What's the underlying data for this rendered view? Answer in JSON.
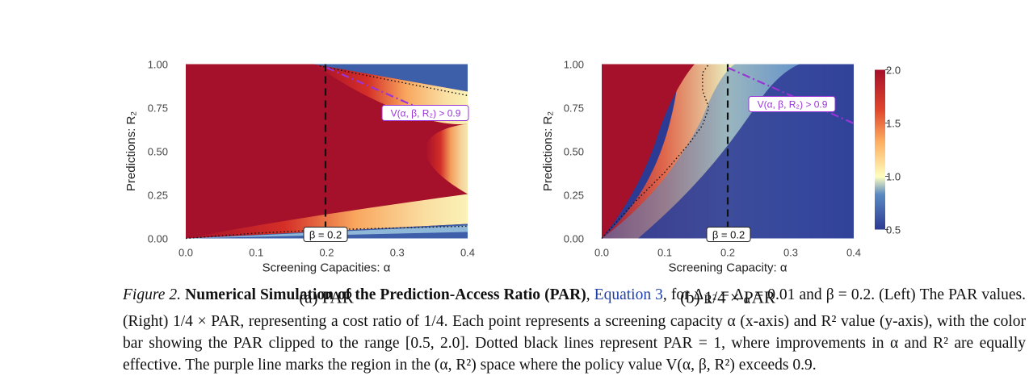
{
  "chart_data": [
    {
      "type": "heatmap",
      "subcaption": "(a) PAR",
      "xlabel": "Screening Capacities: α",
      "ylabel": "Predictions: R₂",
      "xticks": [
        "0.0",
        "0.1",
        "0.2",
        "0.3",
        "0.4"
      ],
      "yticks": [
        "0.00",
        "0.25",
        "0.50",
        "0.75",
        "1.00"
      ],
      "xlim": [
        0,
        0.4
      ],
      "ylim": [
        0,
        1
      ],
      "beta_line": {
        "x": 0.2,
        "label": "β = 0.2"
      },
      "policy_line": {
        "x": [
          0.2,
          0.33
        ],
        "y": [
          0.98,
          0.75
        ],
        "label": "V(α, β, R₂) > 0.9"
      },
      "contour_par_1_upper": {
        "x": [
          0.19,
          0.25,
          0.3,
          0.35,
          0.4
        ],
        "y": [
          0.99,
          0.94,
          0.9,
          0.86,
          0.82
        ]
      },
      "contour_par_1_lower": {
        "x": [
          0.0,
          0.1,
          0.2,
          0.3,
          0.4
        ],
        "y": [
          0.0,
          0.03,
          0.05,
          0.06,
          0.07
        ]
      },
      "colorscale_clip": [
        0.5,
        2.0
      ]
    },
    {
      "type": "heatmap",
      "subcaption": "(b) 1/4 × PAR",
      "xlabel": "Screening Capacity: α",
      "ylabel": "Predictions: R₂",
      "xticks": [
        "0.0",
        "0.1",
        "0.2",
        "0.3",
        "0.4"
      ],
      "yticks": [
        "0.00",
        "0.25",
        "0.50",
        "0.75",
        "1.00"
      ],
      "xlim": [
        0,
        0.4
      ],
      "ylim": [
        0,
        1
      ],
      "beta_line": {
        "x": 0.2,
        "label": "β = 0.2"
      },
      "policy_line": {
        "x": [
          0.2,
          0.4
        ],
        "y": [
          0.98,
          0.66
        ],
        "label": "V(α, β, R₂) > 0.9"
      },
      "contour_par_1": {
        "x": [
          0.0,
          0.05,
          0.1,
          0.14,
          0.16,
          0.17,
          0.16,
          0.16,
          0.17
        ],
        "y": [
          0.0,
          0.2,
          0.38,
          0.55,
          0.65,
          0.75,
          0.85,
          0.95,
          1.0
        ]
      },
      "colorscale_clip": [
        0.5,
        2.0
      ],
      "colorbar_ticks": [
        "0.5",
        "1.0",
        "1.5",
        "2.0"
      ]
    }
  ],
  "caption": {
    "figure_label": "Figure 2.",
    "title": "Numerical Simulation of the Prediction-Access Ratio (PAR)",
    "ref": "Equation 3",
    "line1_rest": ", for Δ",
    "delta_sub": "R²",
    "line1_tail": " = Δ",
    "alpha_sub": "α",
    "line1_end": " = 0.01 and β = 0.2. (Left) The",
    "line2": "PAR values. (Right) 1/4 × PAR, representing a cost ratio of 1/4. Each point represents a screening capacity α (x-axis) and R² value",
    "line3": "(y-axis), with the color bar showing the PAR clipped to the range [0.5, 2.0]. Dotted black lines represent PAR = 1, where improvements",
    "line4": "in α and R² are equally effective. The purple line marks the region in the (α, R²) space where the policy value V(α, β, R²) exceeds 0.9."
  },
  "colors": {
    "high": "#a5102a",
    "mid": "#fefebe",
    "low": "#2d3a94",
    "policy": "#9a34d6"
  }
}
